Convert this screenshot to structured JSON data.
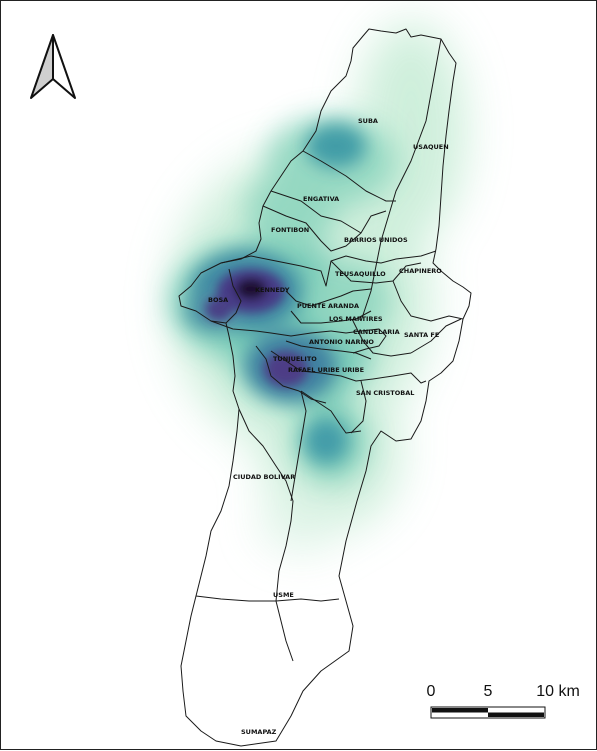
{
  "map": {
    "localities": [
      {
        "id": "suba",
        "label": "SUBA"
      },
      {
        "id": "usaquen",
        "label": "USAQUEN"
      },
      {
        "id": "engativa",
        "label": "ENGATIVA"
      },
      {
        "id": "fontibon",
        "label": "FONTIBON"
      },
      {
        "id": "barrios-unidos",
        "label": "BARRIOS UNIDOS"
      },
      {
        "id": "teusaquillo",
        "label": "TEUSAQUILLO"
      },
      {
        "id": "chapinero",
        "label": "CHAPINERO"
      },
      {
        "id": "kennedy",
        "label": "KENNEDY"
      },
      {
        "id": "bosa",
        "label": "BOSA"
      },
      {
        "id": "puente-aranda",
        "label": "PUENTE ARANDA"
      },
      {
        "id": "los-martires",
        "label": "LOS MARTIRES"
      },
      {
        "id": "candelaria",
        "label": "CANDELARIA"
      },
      {
        "id": "santa-fe",
        "label": "SANTA FE"
      },
      {
        "id": "antonio-narino",
        "label": "ANTONIO NARINO"
      },
      {
        "id": "tunjuelito",
        "label": "TUNJUELITO"
      },
      {
        "id": "rafael-uribe-uribe",
        "label": "RAFAEL URIBE URIBE"
      },
      {
        "id": "san-cristobal",
        "label": "SAN CRISTOBAL"
      },
      {
        "id": "ciudad-bolivar",
        "label": "CIUDAD BOLIVAR"
      },
      {
        "id": "usme",
        "label": "USME"
      },
      {
        "id": "sumapaz",
        "label": "SUMAPAZ"
      }
    ],
    "heatmap_colors": {
      "low": "#c8ecd6",
      "mid_low": "#7fd0b8",
      "mid": "#3fa3a6",
      "mid_high": "#3d6d99",
      "high": "#4a3a86",
      "peak": "#1a0a2a"
    },
    "boundary_color": "#1a1a1a",
    "north_arrow": {
      "symbol": "north-arrow"
    },
    "scale_bar": {
      "labels": [
        "0",
        "5",
        "10 km"
      ]
    }
  }
}
